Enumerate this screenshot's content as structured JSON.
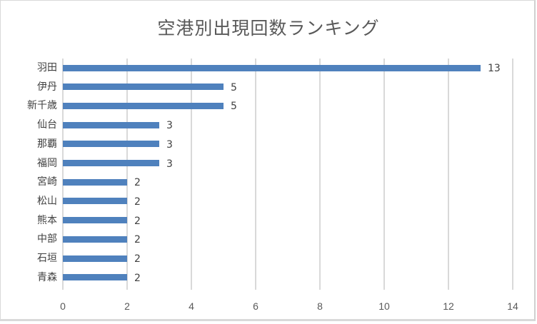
{
  "chart_data": {
    "type": "bar",
    "orientation": "horizontal",
    "title": "空港別出現回数ランキング",
    "categories": [
      "羽田",
      "伊丹",
      "新千歳",
      "仙台",
      "那覇",
      "福岡",
      "宮崎",
      "松山",
      "熊本",
      "中部",
      "石垣",
      "青森"
    ],
    "values": [
      13,
      5,
      5,
      3,
      3,
      3,
      2,
      2,
      2,
      2,
      2,
      2
    ],
    "xlabel": "",
    "ylabel": "",
    "xlim": [
      0,
      14
    ],
    "xticks": [
      0,
      2,
      4,
      6,
      8,
      10,
      12,
      14
    ],
    "grid": true,
    "legend": null,
    "data_labels": true,
    "bar_color": "#4f81bd"
  }
}
